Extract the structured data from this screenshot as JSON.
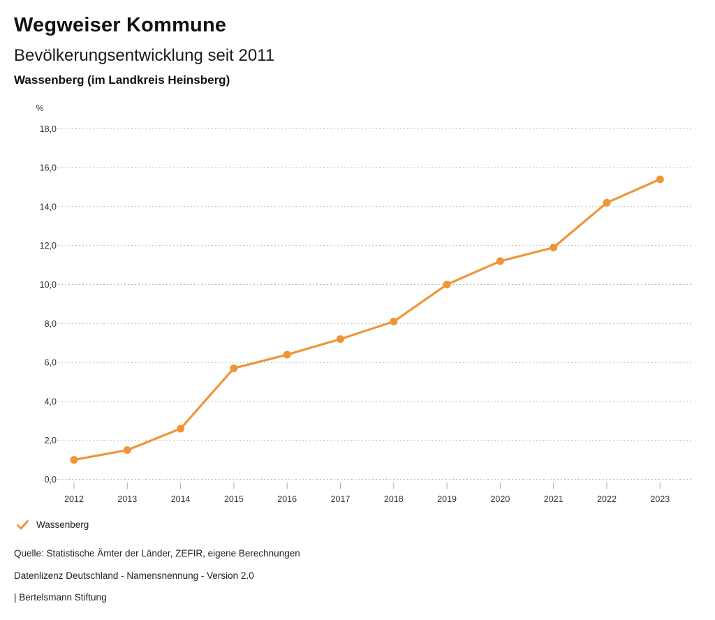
{
  "header": {
    "title": "Wegweiser Kommune",
    "subtitle": "Bevölkerungsentwicklung seit 2011",
    "region": "Wassenberg (im Landkreis Heinsberg)"
  },
  "chart_data": {
    "type": "line",
    "title": "Bevölkerungsentwicklung seit 2011",
    "xlabel": "",
    "ylabel": "%",
    "categories": [
      "2012",
      "2013",
      "2014",
      "2015",
      "2016",
      "2017",
      "2018",
      "2019",
      "2020",
      "2021",
      "2022",
      "2023"
    ],
    "series": [
      {
        "name": "Wassenberg",
        "color": "#EF9539",
        "values": [
          1.0,
          1.5,
          2.6,
          5.7,
          6.4,
          7.2,
          8.1,
          10.0,
          11.2,
          11.9,
          14.2,
          15.4
        ]
      }
    ],
    "ylim": [
      0,
      18
    ],
    "ytick_step": 2,
    "decimal_separator": ",",
    "grid": "horizontal-dashed",
    "gridline_color": "#b8b8b8",
    "axis_text_color": "#333333",
    "legend_position": "bottom-left"
  },
  "legend": {
    "items": [
      {
        "label": "Wassenberg",
        "color": "#EF9539",
        "icon": "check"
      }
    ]
  },
  "footer": {
    "source": "Quelle: Statistische Ämter der Länder, ZEFIR, eigene Berechnungen",
    "license": "Datenlizenz Deutschland - Namensnennung - Version 2.0",
    "attribution": "| Bertelsmann Stiftung"
  }
}
